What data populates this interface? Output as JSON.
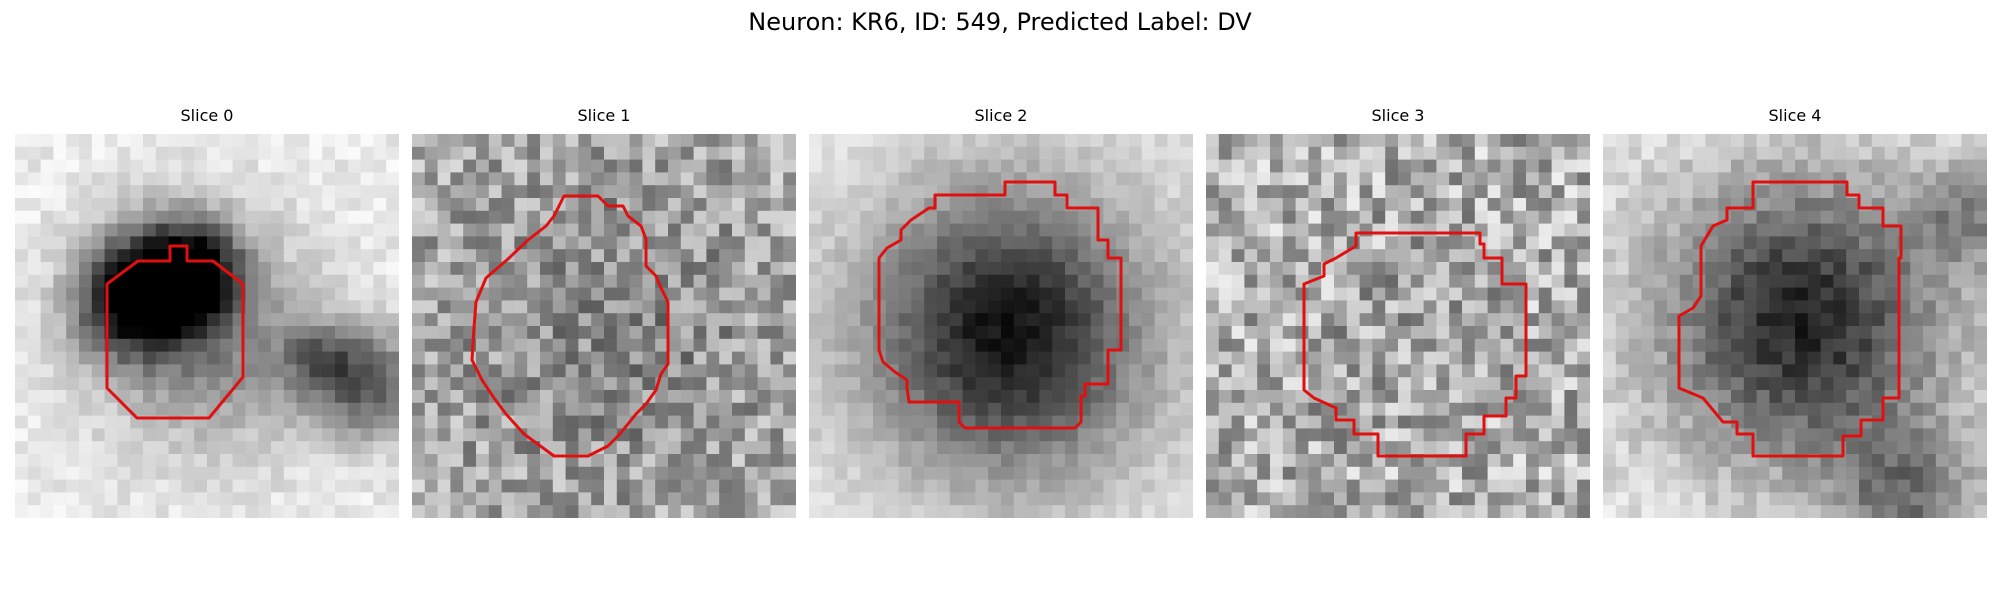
{
  "figure": {
    "title": "Neuron: KR6, ID: 549, Predicted Label: DV",
    "panels": [
      {
        "title": "Slice 0",
        "contour_color": "#e01010"
      },
      {
        "title": "Slice 1",
        "contour_color": "#e01010"
      },
      {
        "title": "Slice 2",
        "contour_color": "#e01010"
      },
      {
        "title": "Slice 3",
        "contour_color": "#e01010"
      },
      {
        "title": "Slice 4",
        "contour_color": "#e01010"
      }
    ],
    "colormap": "gray_r"
  }
}
